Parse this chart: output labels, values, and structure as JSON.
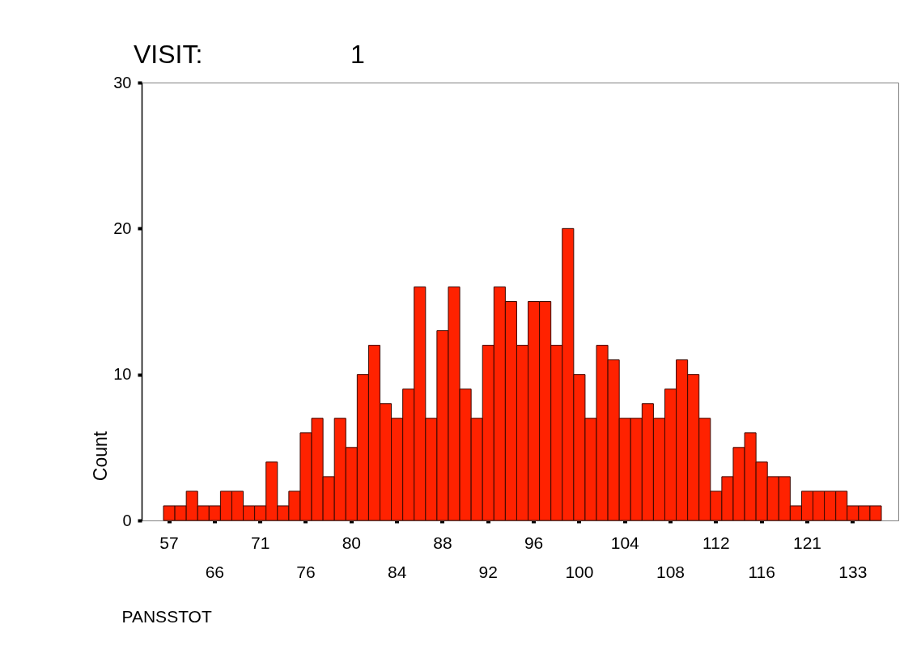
{
  "chart_data": {
    "type": "bar",
    "title": "VISIT: 1",
    "xlabel": "PANSSTOT",
    "ylabel": "Count",
    "categories": [
      "57",
      null,
      null,
      null,
      "66",
      null,
      null,
      null,
      "71",
      null,
      null,
      null,
      "76",
      null,
      null,
      null,
      "80",
      null,
      null,
      null,
      "84",
      null,
      null,
      null,
      "88",
      null,
      null,
      null,
      "92",
      null,
      null,
      null,
      "96",
      null,
      null,
      null,
      "100",
      null,
      null,
      null,
      "104",
      null,
      null,
      null,
      "108",
      null,
      null,
      null,
      "112",
      null,
      null,
      null,
      "116",
      null,
      null,
      null,
      "121",
      null,
      null,
      null,
      "133",
      null,
      null
    ],
    "values": [
      1,
      1,
      2,
      1,
      1,
      2,
      2,
      1,
      1,
      4,
      1,
      2,
      6,
      7,
      3,
      7,
      5,
      10,
      12,
      8,
      7,
      9,
      16,
      7,
      13,
      16,
      9,
      7,
      12,
      16,
      15,
      12,
      15,
      15,
      12,
      20,
      10,
      7,
      12,
      11,
      7,
      7,
      8,
      7,
      9,
      11,
      10,
      7,
      2,
      3,
      5,
      6,
      4,
      3,
      3,
      1,
      2,
      2,
      2,
      2,
      1,
      1,
      1
    ],
    "color": "#ff2200",
    "ylim": [
      0,
      30
    ],
    "yticks": [
      0,
      10,
      20,
      30
    ],
    "grid": false
  }
}
